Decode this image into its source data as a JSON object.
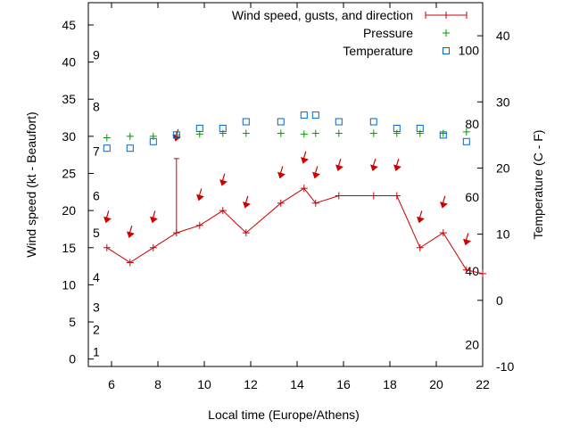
{
  "chart_data": {
    "type": "line",
    "xlabel": "Local time (Europe/Athens)",
    "ylabel_left": "Wind speed (kt - Beaufort)",
    "ylabel_right": "Temperature (C - F)",
    "xlim": [
      5,
      22
    ],
    "ylim_left": [
      -1,
      48
    ],
    "ylim_right": [
      -10,
      45
    ],
    "x_ticks": [
      6,
      8,
      10,
      12,
      14,
      16,
      18,
      20,
      22
    ],
    "y_ticks_left": [
      0,
      5,
      10,
      15,
      20,
      25,
      30,
      35,
      40,
      45
    ],
    "y_ticks_right": [
      -10,
      0,
      10,
      20,
      30,
      40
    ],
    "beaufort_scale": [
      {
        "label": "1",
        "kt": 1
      },
      {
        "label": "2",
        "kt": 4
      },
      {
        "label": "3",
        "kt": 7
      },
      {
        "label": "4",
        "kt": 11
      },
      {
        "label": "5",
        "kt": 17
      },
      {
        "label": "6",
        "kt": 22
      },
      {
        "label": "7",
        "kt": 28
      },
      {
        "label": "8",
        "kt": 34
      },
      {
        "label": "9",
        "kt": 41
      }
    ],
    "fahrenheit_scale": [
      {
        "label": "20",
        "c": -6.7
      },
      {
        "label": "40",
        "c": 4.4
      },
      {
        "label": "60",
        "c": 15.6
      },
      {
        "label": "80",
        "c": 26.7
      },
      {
        "label": "100",
        "c": 37.8
      }
    ],
    "legend": [
      {
        "key": "wind",
        "label": "Wind speed, gusts, and direction"
      },
      {
        "key": "pressure",
        "label": "Pressure"
      },
      {
        "key": "temperature",
        "label": "Temperature"
      }
    ],
    "legend_position": "top-right",
    "wind": {
      "x": [
        5.8,
        6.8,
        7.8,
        8.8,
        9.8,
        10.8,
        11.8,
        13.3,
        14.3,
        14.8,
        15.8,
        17.3,
        18.3,
        19.3,
        20.3,
        21.3,
        22.0
      ],
      "speed": [
        15,
        13,
        15,
        17,
        18,
        20,
        17,
        21,
        23,
        21,
        22,
        22,
        22,
        15,
        17,
        12,
        11.5
      ],
      "gust": [
        null,
        null,
        null,
        27,
        null,
        null,
        null,
        null,
        null,
        null,
        null,
        null,
        null,
        null,
        null,
        null,
        null
      ],
      "arrow_speed": [
        19,
        17,
        19,
        30,
        22,
        24,
        21,
        25,
        27,
        25,
        26,
        26,
        26,
        19,
        21,
        16,
        null
      ]
    },
    "pressure": {
      "x": [
        5.8,
        6.8,
        7.8,
        8.8,
        9.8,
        10.8,
        11.8,
        13.3,
        14.3,
        14.8,
        15.8,
        17.3,
        18.3,
        19.3,
        20.3,
        21.3
      ],
      "y": [
        29.8,
        30.0,
        30.0,
        30.2,
        30.3,
        30.4,
        30.4,
        30.4,
        30.3,
        30.4,
        30.4,
        30.4,
        30.4,
        30.4,
        30.4,
        30.6
      ]
    },
    "temperature": {
      "x": [
        5.8,
        6.8,
        7.8,
        8.8,
        9.8,
        10.8,
        11.8,
        13.3,
        14.3,
        14.8,
        15.8,
        17.3,
        18.3,
        19.3,
        20.3,
        21.3
      ],
      "y": [
        23,
        23,
        24,
        25,
        26,
        26,
        27,
        27,
        28,
        28,
        27,
        27,
        26,
        26,
        25,
        24
      ]
    },
    "colors": {
      "wind": "#cc0000",
      "pressure": "#009900",
      "temperature": "#0066cc"
    }
  }
}
